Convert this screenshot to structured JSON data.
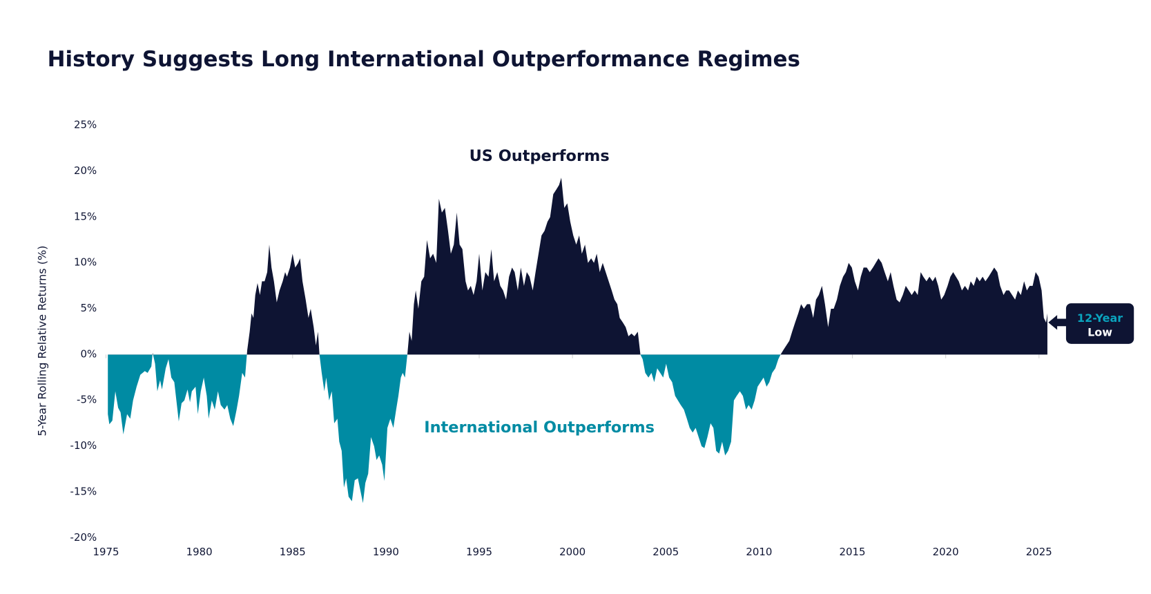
{
  "chart_data": {
    "type": "area",
    "title": "History Suggests Long International Outperformance Regimes",
    "y_label": "5-Year Rolling Relative Returns (%)",
    "annotations": [
      "US Outperforms",
      "International Outperforms",
      "12-Year",
      "Low"
    ],
    "positive_color": "#0e1433",
    "negative_color": "#008ba3",
    "xlim": [
      1975,
      2025.5
    ],
    "xticks": [
      1975,
      1980,
      1985,
      1990,
      1995,
      2000,
      2005,
      2010,
      2015,
      2020,
      2025
    ],
    "ylim": [
      -20,
      25
    ],
    "yticks": [
      {
        "value": -20,
        "label": "-20%"
      },
      {
        "value": -15,
        "label": "-15%"
      },
      {
        "value": -10,
        "label": "-10%"
      },
      {
        "value": -5,
        "label": "-5%"
      },
      {
        "value": 0,
        "label": "0%"
      },
      {
        "value": 5,
        "label": "5%"
      },
      {
        "value": 10,
        "label": "10%"
      },
      {
        "value": 15,
        "label": "15%"
      },
      {
        "value": 20,
        "label": "20%"
      },
      {
        "value": 25,
        "label": "25%"
      }
    ],
    "grid": false,
    "x": [
      1975.1,
      1975.18,
      1975.34,
      1975.5,
      1975.65,
      1975.78,
      1975.93,
      1976.13,
      1976.3,
      1976.45,
      1976.64,
      1976.84,
      1977.08,
      1977.23,
      1977.43,
      1977.5,
      1977.63,
      1977.75,
      1977.9,
      1978.0,
      1978.2,
      1978.35,
      1978.5,
      1978.66,
      1978.8,
      1978.9,
      1979.05,
      1979.2,
      1979.37,
      1979.5,
      1979.6,
      1979.8,
      1979.92,
      1980.08,
      1980.24,
      1980.4,
      1980.5,
      1980.67,
      1980.83,
      1981.0,
      1981.15,
      1981.35,
      1981.5,
      1981.66,
      1981.82,
      1982.0,
      1982.13,
      1982.3,
      1982.45,
      1982.57,
      1982.7,
      1982.8,
      1982.9,
      1983.0,
      1983.12,
      1983.25,
      1983.36,
      1983.5,
      1983.64,
      1983.75,
      1983.87,
      1984.0,
      1984.15,
      1984.3,
      1984.47,
      1984.6,
      1984.7,
      1984.86,
      1985.0,
      1985.14,
      1985.3,
      1985.4,
      1985.53,
      1985.7,
      1985.85,
      1985.97,
      1986.13,
      1986.25,
      1986.36,
      1986.44,
      1986.56,
      1986.7,
      1986.8,
      1986.96,
      1987.1,
      1987.23,
      1987.4,
      1987.5,
      1987.63,
      1987.75,
      1987.87,
      1988.0,
      1988.18,
      1988.33,
      1988.5,
      1988.65,
      1988.77,
      1988.9,
      1989.05,
      1989.2,
      1989.37,
      1989.5,
      1989.64,
      1989.8,
      1989.92,
      1990.08,
      1990.24,
      1990.4,
      1990.55,
      1990.67,
      1990.8,
      1990.9,
      1991.02,
      1991.15,
      1991.26,
      1991.38,
      1991.5,
      1991.6,
      1991.74,
      1991.9,
      1992.05,
      1992.2,
      1992.37,
      1992.53,
      1992.7,
      1992.84,
      1993.0,
      1993.16,
      1993.33,
      1993.48,
      1993.64,
      1993.8,
      1993.95,
      1994.1,
      1994.27,
      1994.4,
      1994.55,
      1994.7,
      1994.86,
      1995.0,
      1995.17,
      1995.33,
      1995.5,
      1995.65,
      1995.8,
      1995.97,
      1996.13,
      1996.28,
      1996.44,
      1996.6,
      1996.76,
      1996.9,
      1997.07,
      1997.23,
      1997.4,
      1997.55,
      1997.7,
      1997.87,
      1998.02,
      1998.18,
      1998.34,
      1998.5,
      1998.66,
      1998.8,
      1998.97,
      1999.13,
      1999.28,
      1999.4,
      1999.56,
      1999.72,
      1999.88,
      2000.04,
      2000.2,
      2000.36,
      2000.5,
      2000.67,
      2000.83,
      2001.0,
      2001.15,
      2001.3,
      2001.46,
      2001.62,
      2001.78,
      2001.94,
      2002.1,
      2002.25,
      2002.4,
      2002.53,
      2002.7,
      2002.85,
      2003.0,
      2003.16,
      2003.32,
      2003.5,
      2003.64,
      2003.76,
      2003.9,
      2004.07,
      2004.23,
      2004.38,
      2004.54,
      2004.7,
      2004.86,
      2005.02,
      2005.18,
      2005.34,
      2005.5,
      2005.65,
      2005.8,
      2005.97,
      2006.13,
      2006.28,
      2006.44,
      2006.6,
      2006.76,
      2006.92,
      2007.07,
      2007.23,
      2007.4,
      2007.55,
      2007.7,
      2007.86,
      2008.02,
      2008.18,
      2008.34,
      2008.5,
      2008.65,
      2008.8,
      2008.97,
      2009.13,
      2009.3,
      2009.44,
      2009.6,
      2009.76,
      2009.92,
      2010.08,
      2010.24,
      2010.4,
      2010.55,
      2010.7,
      2010.87,
      2011.03,
      2011.15,
      2011.3,
      2011.46,
      2011.62,
      2011.77,
      2011.93,
      2012.1,
      2012.25,
      2012.4,
      2012.57,
      2012.73,
      2012.9,
      2013.05,
      2013.2,
      2013.37,
      2013.53,
      2013.7,
      2013.85,
      2014.0,
      2014.17,
      2014.33,
      2014.5,
      2014.65,
      2014.8,
      2014.97,
      2015.13,
      2015.3,
      2015.45,
      2015.6,
      2015.77,
      2015.93,
      2016.1,
      2016.25,
      2016.4,
      2016.57,
      2016.73,
      2016.9,
      2017.05,
      2017.2,
      2017.37,
      2017.53,
      2017.7,
      2017.86,
      2018.02,
      2018.18,
      2018.34,
      2018.5,
      2018.66,
      2018.8,
      2018.97,
      2019.13,
      2019.3,
      2019.45,
      2019.6,
      2019.76,
      2019.92,
      2020.1,
      2020.25,
      2020.4,
      2020.55,
      2020.7,
      2020.87,
      2021.03,
      2021.2,
      2021.34,
      2021.5,
      2021.66,
      2021.82,
      2021.98,
      2022.13,
      2022.3,
      2022.45,
      2022.6,
      2022.77,
      2022.92,
      2023.1,
      2023.24,
      2023.4,
      2023.56,
      2023.72,
      2023.87,
      2024.03,
      2024.2,
      2024.35,
      2024.5,
      2024.66,
      2024.82,
      2024.98,
      2025.14,
      2025.26,
      2025.38,
      2025.45
    ],
    "values": [
      -6.5,
      -7.6,
      -7.2,
      -4,
      -5.8,
      -6.3,
      -8.7,
      -6.5,
      -7,
      -5,
      -3.5,
      -2.2,
      -1.8,
      -2,
      -1.3,
      0.2,
      -1,
      -4,
      -2.8,
      -3.8,
      -1.5,
      -0.5,
      -2.5,
      -3,
      -5.5,
      -7.3,
      -5.3,
      -5,
      -3.8,
      -5.2,
      -4,
      -3.5,
      -6.5,
      -4,
      -2.5,
      -4.5,
      -7,
      -5,
      -6,
      -4,
      -5.5,
      -6,
      -5.5,
      -7,
      -7.8,
      -6,
      -4.5,
      -2,
      -2.5,
      0.5,
      2.5,
      4.5,
      4,
      6.5,
      7.8,
      6.5,
      8,
      8,
      9,
      12,
      9.5,
      8,
      5.7,
      7,
      8,
      9,
      8.5,
      9.5,
      11,
      9.5,
      10,
      10.5,
      8,
      6,
      4,
      5,
      3,
      1,
      2.5,
      0,
      -2,
      -4,
      -2.5,
      -5,
      -4,
      -7.5,
      -7,
      -9.5,
      -10.5,
      -14.5,
      -13.5,
      -15.5,
      -16,
      -13.7,
      -13.5,
      -15,
      -16.2,
      -14,
      -13,
      -9,
      -10,
      -11.5,
      -11,
      -12,
      -13.8,
      -8,
      -7,
      -8,
      -6,
      -4.5,
      -2.5,
      -2,
      -2.5,
      0,
      2.5,
      1.5,
      5.5,
      7,
      5,
      8,
      8.5,
      12.5,
      10.5,
      11,
      10,
      17,
      15.5,
      16,
      13.5,
      11,
      12,
      15.5,
      12,
      11.5,
      8,
      7,
      7.5,
      6.5,
      8,
      11,
      7,
      9,
      8.5,
      11.5,
      8,
      9,
      7.5,
      7,
      6,
      8.5,
      9.5,
      9,
      7,
      9.5,
      7.5,
      9,
      8.5,
      7,
      9,
      11,
      13,
      13.5,
      14.5,
      15,
      17.5,
      18,
      18.5,
      19.3,
      16,
      16.5,
      14.5,
      13,
      12,
      13,
      11,
      12,
      10,
      10.5,
      10,
      11,
      9,
      10,
      9,
      8,
      7,
      6,
      5.5,
      4,
      3.5,
      3,
      2,
      2.3,
      2,
      2.5,
      0,
      -0.5,
      -2,
      -2.5,
      -2,
      -3,
      -1.5,
      -2,
      -2.5,
      -1,
      -2.5,
      -3,
      -4.5,
      -5,
      -5.5,
      -6,
      -7,
      -8,
      -8.5,
      -8,
      -9,
      -10,
      -10.2,
      -9,
      -7.5,
      -8,
      -10.5,
      -10.8,
      -9.5,
      -11,
      -10.5,
      -9.5,
      -5,
      -4.5,
      -4,
      -4.5,
      -6,
      -5.5,
      -6,
      -5,
      -3.5,
      -3,
      -2.5,
      -3.5,
      -3,
      -2,
      -1.5,
      -0.5,
      0,
      0.5,
      1,
      1.5,
      2.5,
      3.5,
      4.5,
      5.5,
      5,
      5.5,
      5.5,
      4,
      6,
      6.5,
      7.5,
      5.5,
      3,
      5,
      5,
      6,
      7.5,
      8.5,
      9,
      10,
      9.5,
      8,
      7,
      8.5,
      9.5,
      9.5,
      9,
      9.5,
      10,
      10.5,
      10,
      9,
      8,
      9,
      7.5,
      6,
      5.7,
      6.5,
      7.5,
      7,
      6.5,
      7,
      6.5,
      9,
      8.5,
      8,
      8.5,
      8,
      8.5,
      7.5,
      6,
      6.5,
      7.5,
      8.5,
      9,
      8.5,
      8,
      7,
      7.5,
      7,
      8,
      7.5,
      8.5,
      8,
      8.5,
      8,
      8.5,
      9,
      9.5,
      9,
      7.5,
      6.5,
      7,
      7,
      6.5,
      6,
      7,
      6.5,
      8,
      7,
      7.5,
      7.5,
      9,
      8.5,
      7,
      4,
      3.5,
      4.5
    ]
  }
}
